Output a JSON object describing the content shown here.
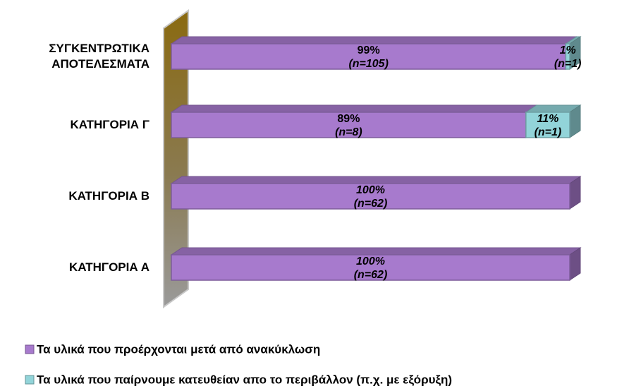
{
  "chart_data": {
    "type": "stacked_bar_horizontal",
    "categories": [
      "ΣΥΓΚΕΝΤΡΩΤΙΚΑ ΑΠΟΤΕΛΕΣΜΑΤΑ",
      "ΚΑΤΗΓΟΡΙΑ Γ",
      "ΚΑΤΗΓΟΡΙΑ Β",
      "ΚΑΤΗΓΟΡΙΑ Α"
    ],
    "xlim": [
      0,
      100
    ],
    "legend": "bottom-left",
    "series": [
      {
        "name": "Τα υλικά που προέρχονται μετά από ανακύκλωση",
        "color": "#a77acd",
        "values": [
          99,
          89,
          100,
          100
        ],
        "value_labels": [
          "99%",
          "89%",
          "100%",
          "100%"
        ],
        "n_labels": [
          "(n=105)",
          "(n=8)",
          "(n=62)",
          "(n=62)"
        ]
      },
      {
        "name": "Τα υλικά που παίρνουμε κατευθείαν απο το περιβάλλον (π.χ. με εξόρυξη)",
        "color": "#92d4d9",
        "values": [
          1,
          11,
          null,
          null
        ],
        "value_labels": [
          "1%",
          "11%",
          null,
          null
        ],
        "n_labels": [
          "(n=1)",
          "(n=1)",
          null,
          null
        ]
      }
    ]
  }
}
